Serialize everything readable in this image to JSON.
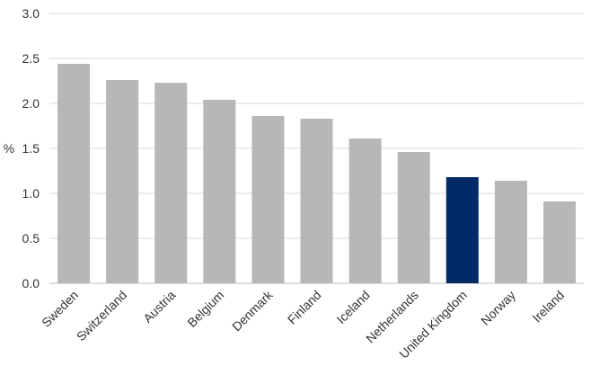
{
  "chart_data": {
    "type": "bar",
    "ylabel": "%",
    "xlabel": "",
    "title": "",
    "ylim": [
      0,
      3.0
    ],
    "yticks": [
      "0.0",
      "0.5",
      "1.0",
      "1.5",
      "2.0",
      "2.5",
      "3.0"
    ],
    "grid": true,
    "legend": "none",
    "categories": [
      "Sweden",
      "Switzerland",
      "Austria",
      "Belgium",
      "Denmark",
      "Finland",
      "Iceland",
      "Netherlands",
      "United Kingdom",
      "Norway",
      "Ireland"
    ],
    "values": [
      2.44,
      2.26,
      2.23,
      2.04,
      1.86,
      1.83,
      1.61,
      1.46,
      1.18,
      1.14,
      0.91
    ],
    "highlight_category": "United Kingdom",
    "colors": {
      "default": "#b7b7b7",
      "highlight": "#002b66"
    }
  }
}
